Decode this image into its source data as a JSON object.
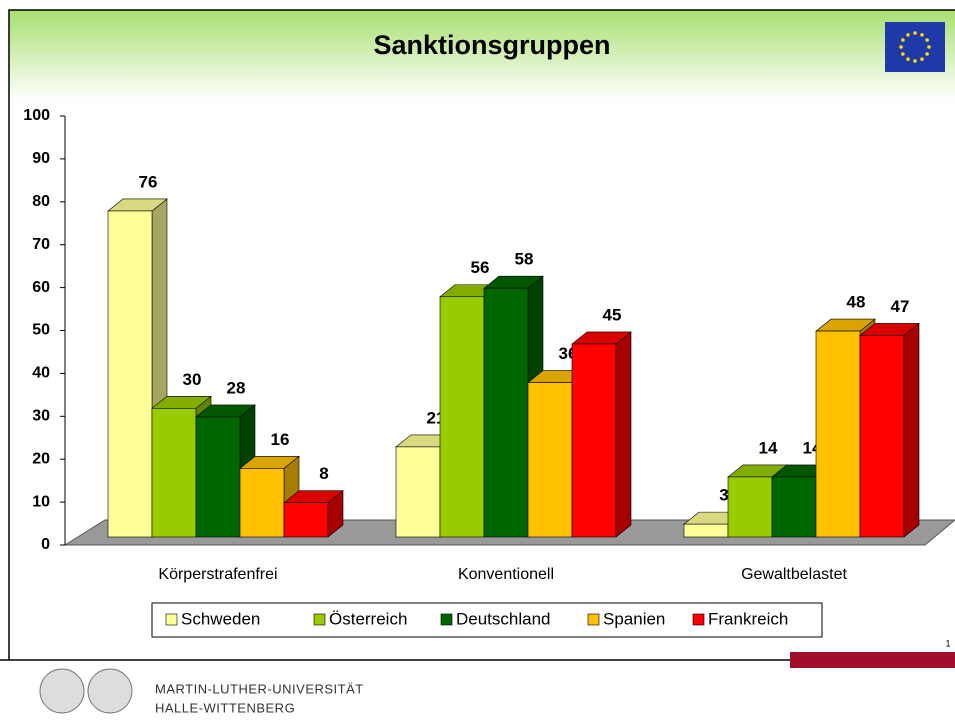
{
  "chart_data": {
    "type": "bar3d",
    "title": "Sanktionsgruppen",
    "categories": [
      "Körperstrafenfrei",
      "Konventionell",
      "Gewaltbelastet"
    ],
    "series": [
      {
        "name": "Schweden",
        "color": "#ffff99",
        "values": [
          76,
          21,
          3
        ]
      },
      {
        "name": "Österreich",
        "color": "#99cc00",
        "values": [
          30,
          56,
          14
        ]
      },
      {
        "name": "Deutschland",
        "color": "#006600",
        "values": [
          28,
          58,
          14
        ]
      },
      {
        "name": "Spanien",
        "color": "#ffc000",
        "values": [
          16,
          36,
          48
        ]
      },
      {
        "name": "Frankreich",
        "color": "#ff0000",
        "values": [
          8,
          45,
          47
        ]
      }
    ],
    "ylim": [
      0,
      100
    ],
    "yticks": [
      0,
      10,
      20,
      30,
      40,
      50,
      60,
      70,
      80,
      90,
      100
    ],
    "legend": "bottom"
  },
  "footer": {
    "lines": [
      "MARTIN-LUTHER-UNIVERSITÄT",
      "HALLE-WITTENBERG"
    ],
    "page": 1
  }
}
